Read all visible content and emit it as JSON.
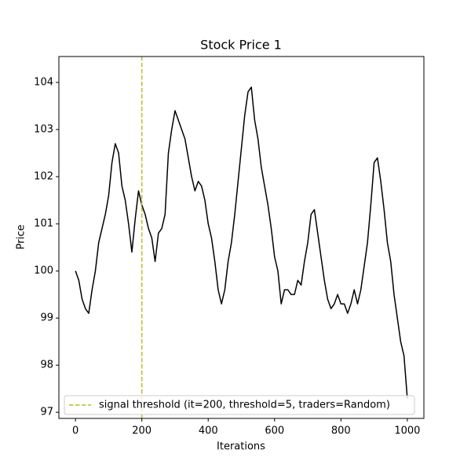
{
  "chart_data": {
    "type": "line",
    "title": "Stock Price 1",
    "xlabel": "Iterations",
    "ylabel": "Price",
    "x": [
      0,
      10,
      20,
      30,
      40,
      50,
      60,
      70,
      80,
      90,
      100,
      110,
      120,
      130,
      140,
      150,
      160,
      170,
      180,
      190,
      200,
      210,
      220,
      230,
      240,
      250,
      260,
      270,
      280,
      290,
      300,
      310,
      320,
      330,
      340,
      350,
      360,
      370,
      380,
      390,
      400,
      410,
      420,
      430,
      440,
      450,
      460,
      470,
      480,
      490,
      500,
      510,
      520,
      530,
      540,
      550,
      560,
      570,
      580,
      590,
      600,
      610,
      620,
      630,
      640,
      650,
      660,
      670,
      680,
      690,
      700,
      710,
      720,
      730,
      740,
      750,
      760,
      770,
      780,
      790,
      800,
      810,
      820,
      830,
      840,
      850,
      860,
      870,
      880,
      890,
      900,
      910,
      920,
      930,
      940,
      950,
      960,
      970,
      980,
      990,
      1000
    ],
    "series": [
      {
        "color": "#000000",
        "values": [
          100.0,
          99.8,
          99.4,
          99.2,
          99.1,
          99.6,
          100.0,
          100.6,
          100.9,
          101.2,
          101.6,
          102.3,
          102.7,
          102.5,
          101.8,
          101.5,
          101.0,
          100.4,
          101.1,
          101.7,
          101.4,
          101.2,
          100.9,
          100.7,
          100.2,
          100.8,
          100.9,
          101.2,
          102.5,
          103.0,
          103.4,
          103.2,
          103.0,
          102.8,
          102.4,
          102.0,
          101.7,
          101.9,
          101.8,
          101.5,
          101.0,
          100.7,
          100.2,
          99.6,
          99.3,
          99.6,
          100.2,
          100.6,
          101.2,
          101.9,
          102.6,
          103.3,
          103.8,
          103.9,
          103.2,
          102.8,
          102.2,
          101.8,
          101.4,
          100.9,
          100.3,
          100.0,
          99.3,
          99.6,
          99.6,
          99.5,
          99.5,
          99.8,
          99.7,
          100.2,
          100.6,
          101.2,
          101.3,
          100.8,
          100.3,
          99.8,
          99.4,
          99.2,
          99.3,
          99.5,
          99.3,
          99.3,
          99.1,
          99.3,
          99.6,
          99.3,
          99.6,
          100.1,
          100.6,
          101.4,
          102.3,
          102.4,
          101.9,
          101.3,
          100.6,
          100.2,
          99.5,
          99.0,
          98.5,
          98.2,
          97.3
        ]
      }
    ],
    "vlines": [
      {
        "x": 200,
        "color": "#bcbd22",
        "label": "signal threshold (it=200, threshold=5, traders=Random)"
      }
    ],
    "legend": "lower left",
    "xlim": [
      -50,
      1050
    ],
    "ylim": [
      96.87,
      104.55
    ],
    "xticks": [
      0,
      200,
      400,
      600,
      800,
      1000
    ],
    "yticks": [
      97,
      98,
      99,
      100,
      101,
      102,
      103,
      104
    ]
  }
}
